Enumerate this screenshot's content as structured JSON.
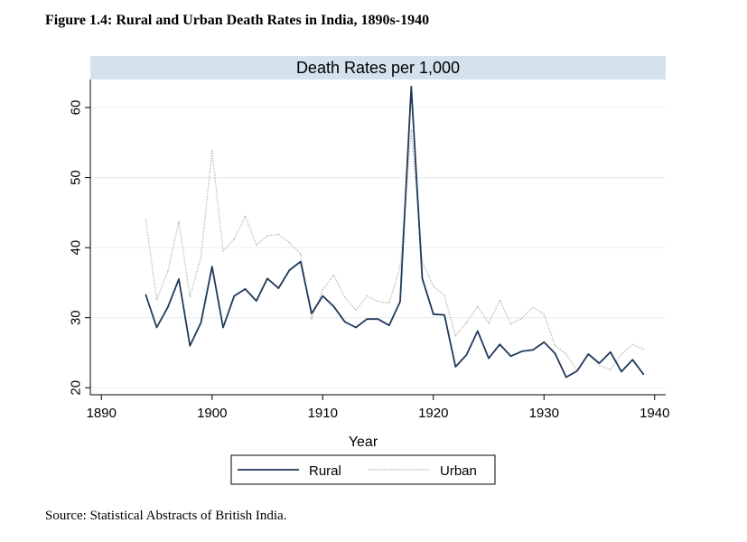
{
  "figure_title": "Figure 1.4: Rural and Urban Death Rates in India, 1890s-1940",
  "source_note": "Source: Statistical Abstracts of British India.",
  "colors": {
    "rural": "#1f3a5a",
    "urban": "#b4b4b4",
    "header_band": "#d3e2ed",
    "grid": "#e6ecf0"
  },
  "chart_data": {
    "type": "line",
    "title": "Death Rates per 1,000",
    "xlabel": "Year",
    "ylabel": "",
    "xlim": [
      1889,
      1941
    ],
    "ylim": [
      19,
      64
    ],
    "xticks": [
      1890,
      1900,
      1910,
      1920,
      1930,
      1940
    ],
    "yticks": [
      20,
      30,
      40,
      50,
      60
    ],
    "grid": true,
    "legend_position": "bottom",
    "series": [
      {
        "name": "Rural",
        "style": "solid",
        "x": [
          1894,
          1895,
          1896,
          1897,
          1898,
          1899,
          1900,
          1901,
          1902,
          1903,
          1904,
          1905,
          1906,
          1907,
          1908,
          1909,
          1910,
          1911,
          1912,
          1913,
          1914,
          1915,
          1916,
          1917,
          1918,
          1919,
          1920,
          1921,
          1922,
          1923,
          1924,
          1925,
          1926,
          1927,
          1928,
          1929,
          1930,
          1931,
          1932,
          1933,
          1934,
          1935,
          1936,
          1937,
          1938,
          1939
        ],
        "values": [
          33.3,
          28.6,
          31.5,
          35.5,
          26.0,
          29.3,
          37.3,
          28.6,
          33.1,
          34.1,
          32.4,
          35.6,
          34.2,
          36.8,
          38.0,
          30.6,
          33.1,
          31.6,
          29.4,
          28.6,
          29.8,
          29.8,
          28.9,
          32.3,
          63.0,
          35.6,
          30.5,
          30.4,
          23.0,
          24.7,
          28.1,
          24.2,
          26.2,
          24.5,
          25.2,
          25.4,
          26.5,
          24.9,
          21.5,
          22.4,
          24.8,
          23.5,
          25.1,
          22.3,
          24.0,
          21.9
        ]
      },
      {
        "name": "Urban",
        "style": "dotted",
        "x": [
          1894,
          1895,
          1896,
          1897,
          1898,
          1899,
          1900,
          1901,
          1902,
          1903,
          1904,
          1905,
          1906,
          1907,
          1908,
          1909,
          1910,
          1911,
          1912,
          1913,
          1914,
          1915,
          1916,
          1917,
          1918,
          1919,
          1920,
          1921,
          1922,
          1923,
          1924,
          1925,
          1926,
          1927,
          1928,
          1929,
          1930,
          1931,
          1932,
          1933,
          1934,
          1935,
          1936,
          1937,
          1938,
          1939
        ],
        "values": [
          44.0,
          32.6,
          36.6,
          43.7,
          33.0,
          38.7,
          53.8,
          39.5,
          41.2,
          44.5,
          40.4,
          41.7,
          41.9,
          40.7,
          39.1,
          29.8,
          34.0,
          36.1,
          32.9,
          31.1,
          33.1,
          32.3,
          32.1,
          37.3,
          56.8,
          38.0,
          34.5,
          33.2,
          27.4,
          29.3,
          31.6,
          29.2,
          32.5,
          29.1,
          29.9,
          31.5,
          30.5,
          26.0,
          24.8,
          22.4,
          24.8,
          23.2,
          22.6,
          24.8,
          26.2,
          25.5
        ]
      }
    ]
  }
}
